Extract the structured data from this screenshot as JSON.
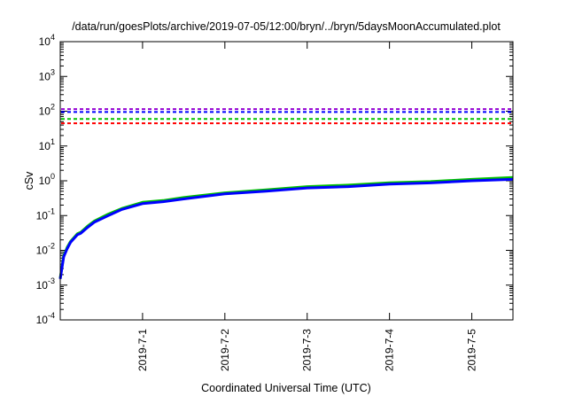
{
  "chart_data": {
    "type": "line",
    "title": "/data/run/goesPlots/archive/2019-07-05/12:00/bryn/../bryn/5daysMoonAccumulated.plot",
    "xlabel": "Coordinated Universal Time (UTC)",
    "ylabel": "cSv",
    "yscale": "log",
    "ylim": [
      0.0001,
      10000
    ],
    "xlim": [
      "2019-06-30T00:00",
      "2019-07-05T12:00"
    ],
    "grid": false,
    "legend": "none",
    "y_ticks": [
      {
        "value": 0.0001,
        "base": "10",
        "exp": "-4"
      },
      {
        "value": 0.001,
        "base": "10",
        "exp": "-3"
      },
      {
        "value": 0.01,
        "base": "10",
        "exp": "-2"
      },
      {
        "value": 0.1,
        "base": "10",
        "exp": "-1"
      },
      {
        "value": 1,
        "base": "10",
        "exp": "0"
      },
      {
        "value": 10,
        "base": "10",
        "exp": "1"
      },
      {
        "value": 100,
        "base": "10",
        "exp": "2"
      },
      {
        "value": 1000,
        "base": "10",
        "exp": "3"
      },
      {
        "value": 10000,
        "base": "10",
        "exp": "4"
      }
    ],
    "x_ticks": [
      "2019-7-1",
      "2019-7-2",
      "2019-7-3",
      "2019-7-4",
      "2019-7-5"
    ],
    "reference_lines": [
      {
        "value": 115,
        "color": "#9400d3"
      },
      {
        "value": 95,
        "color": "#0000ff"
      },
      {
        "value": 60,
        "color": "#00c000"
      },
      {
        "value": 45,
        "color": "#ff0000"
      }
    ],
    "series": [
      {
        "color": "#00c000",
        "x": [
          "2019-06-30T00:00",
          "2019-06-30T01:00",
          "2019-06-30T02:00",
          "2019-06-30T03:00",
          "2019-06-30T05:00",
          "2019-06-30T06:00",
          "2019-06-30T08:00",
          "2019-06-30T10:00",
          "2019-06-30T14:00",
          "2019-06-30T18:00",
          "2019-07-01T00:00",
          "2019-07-01T06:00",
          "2019-07-01T12:00",
          "2019-07-02T00:00",
          "2019-07-02T12:00",
          "2019-07-03T00:00",
          "2019-07-03T12:00",
          "2019-07-04T00:00",
          "2019-07-04T12:00",
          "2019-07-05T00:00",
          "2019-07-05T12:00"
        ],
        "y": [
          0.0016,
          0.007,
          0.012,
          0.018,
          0.03,
          0.033,
          0.05,
          0.07,
          0.11,
          0.16,
          0.24,
          0.27,
          0.33,
          0.45,
          0.55,
          0.68,
          0.75,
          0.88,
          0.95,
          1.1,
          1.25
        ]
      },
      {
        "color": "#0000ff",
        "x": [
          "2019-06-30T00:00",
          "2019-06-30T01:00",
          "2019-06-30T02:00",
          "2019-06-30T03:00",
          "2019-06-30T05:00",
          "2019-06-30T06:00",
          "2019-06-30T08:00",
          "2019-06-30T10:00",
          "2019-06-30T14:00",
          "2019-06-30T18:00",
          "2019-07-01T00:00",
          "2019-07-01T06:00",
          "2019-07-01T12:00",
          "2019-07-02T00:00",
          "2019-07-02T12:00",
          "2019-07-03T00:00",
          "2019-07-03T12:00",
          "2019-07-04T00:00",
          "2019-07-04T12:00",
          "2019-07-05T00:00",
          "2019-07-05T12:00"
        ],
        "y": [
          0.0015,
          0.0065,
          0.011,
          0.017,
          0.028,
          0.031,
          0.046,
          0.065,
          0.1,
          0.15,
          0.22,
          0.25,
          0.3,
          0.42,
          0.5,
          0.62,
          0.68,
          0.8,
          0.87,
          1.0,
          1.1
        ]
      }
    ]
  }
}
